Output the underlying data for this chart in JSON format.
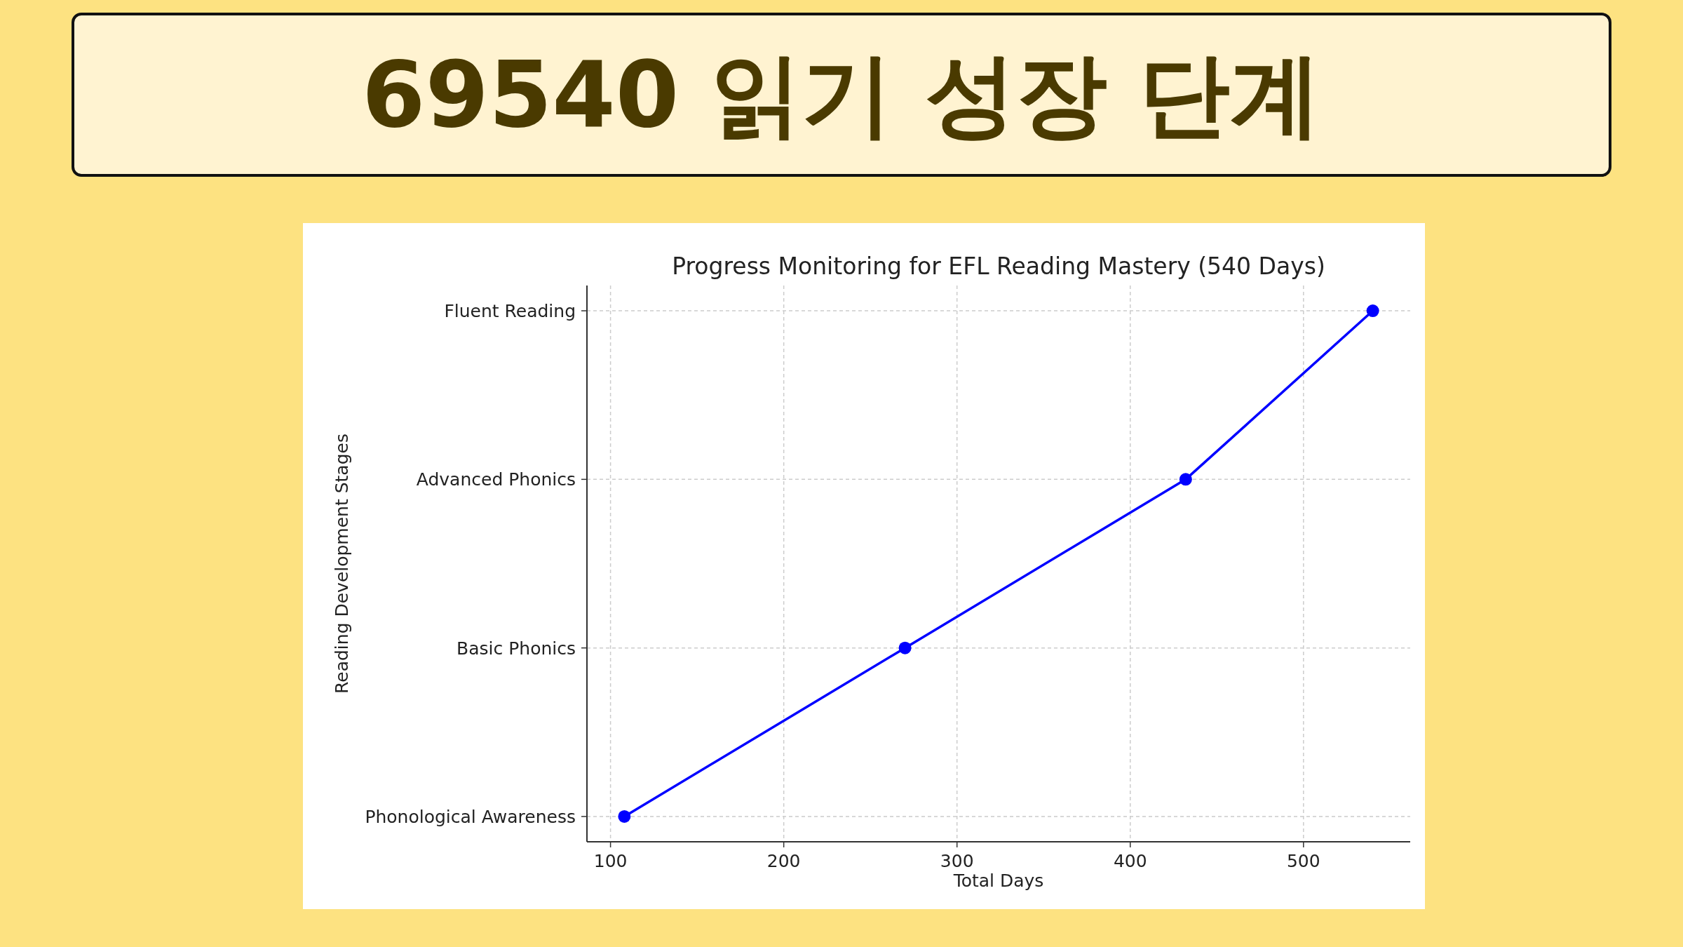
{
  "chart_data": {
    "type": "line",
    "orientation": "horizontal",
    "title": "69540 읽기 성장 단계",
    "subtitle": "Progress Monitoring for EFL Reading Mastery (540 Days)",
    "xlabel": "Total Days",
    "ylabel": "Reading Development Stages",
    "categories": [
      "Fluent Reading",
      "Advanced Phonics",
      "Basic Phonics",
      "Phonological Awareness"
    ],
    "series": [
      {
        "color": "#0000ff",
        "values": [
          540,
          432,
          270,
          108
        ]
      }
    ],
    "xlim": [
      86.4,
      561.6
    ],
    "xticks": [
      100,
      200,
      300,
      400,
      500
    ],
    "grid": true,
    "marker": "circle",
    "line_style": "solid"
  }
}
